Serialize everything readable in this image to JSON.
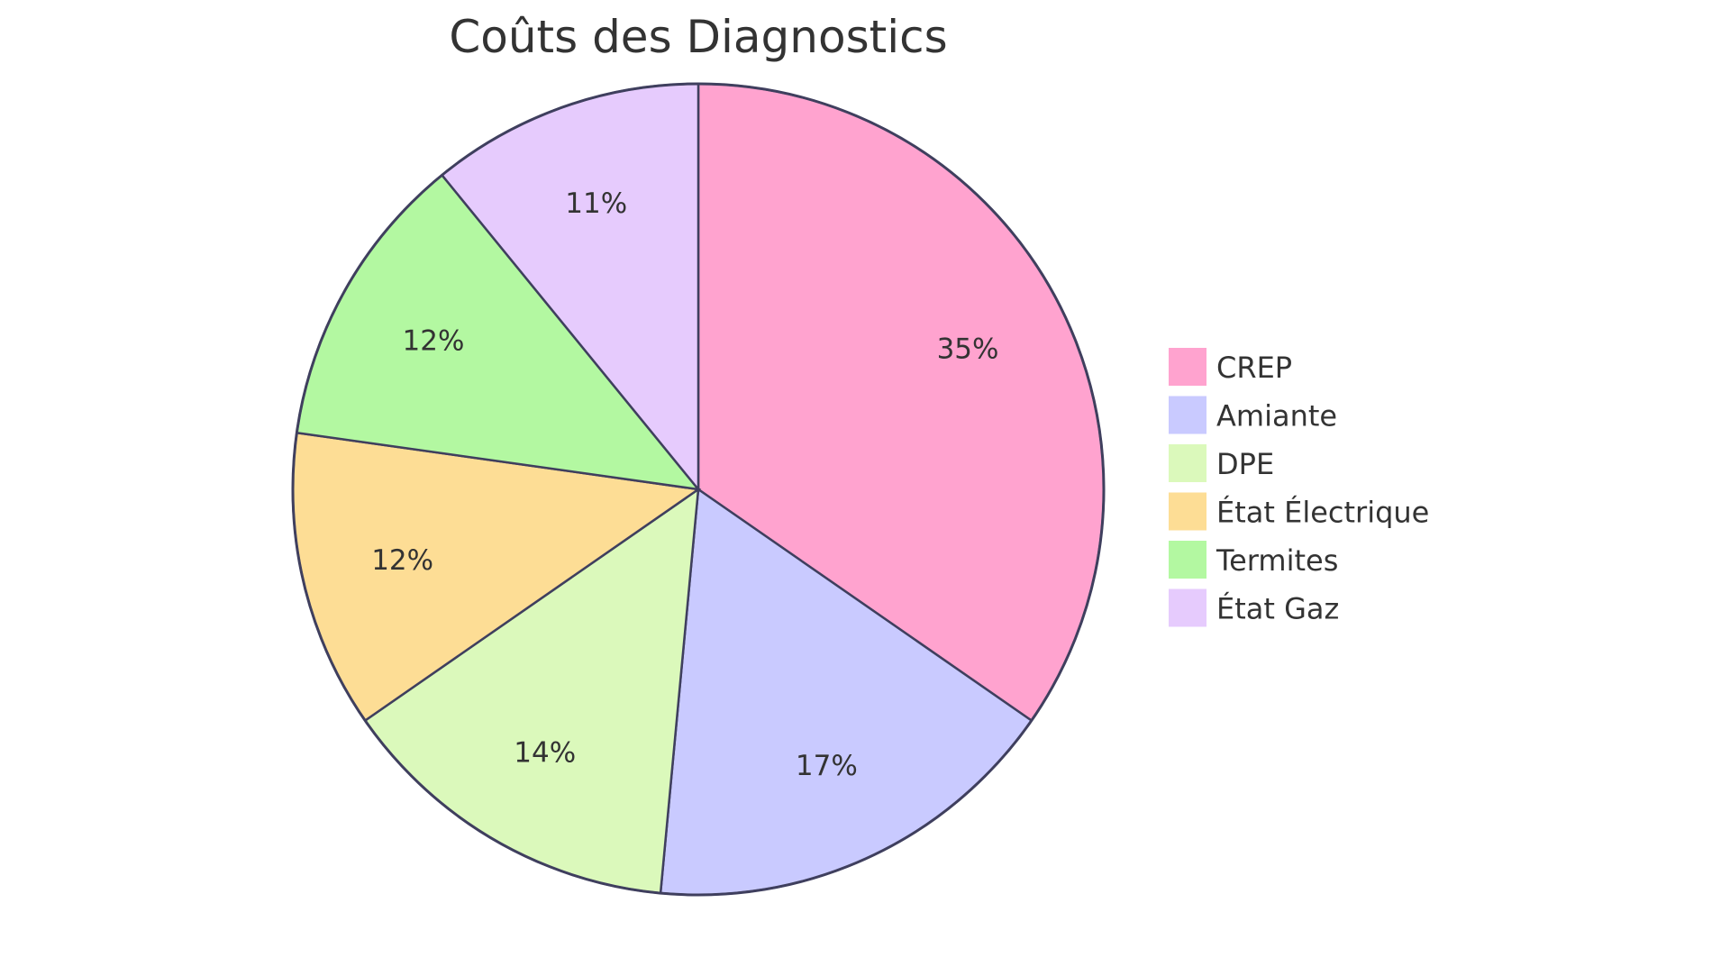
{
  "chart_data": {
    "type": "pie",
    "title": "Coûts des Diagnostics",
    "slices": [
      {
        "label": "CREP",
        "value": 35,
        "display": "35%",
        "color": "#ffa3cf"
      },
      {
        "label": "Amiante",
        "value": 17,
        "display": "17%",
        "color": "#c9caff"
      },
      {
        "label": "DPE",
        "value": 14,
        "display": "14%",
        "color": "#dbf9bb"
      },
      {
        "label": "État Électrique",
        "value": 12,
        "display": "12%",
        "color": "#fddd95"
      },
      {
        "label": "Termites",
        "value": 12,
        "display": "12%",
        "color": "#b3f8a1"
      },
      {
        "label": "État Gaz",
        "value": 11,
        "display": "11%",
        "color": "#e6cbfd"
      }
    ],
    "legend_position": "right"
  }
}
